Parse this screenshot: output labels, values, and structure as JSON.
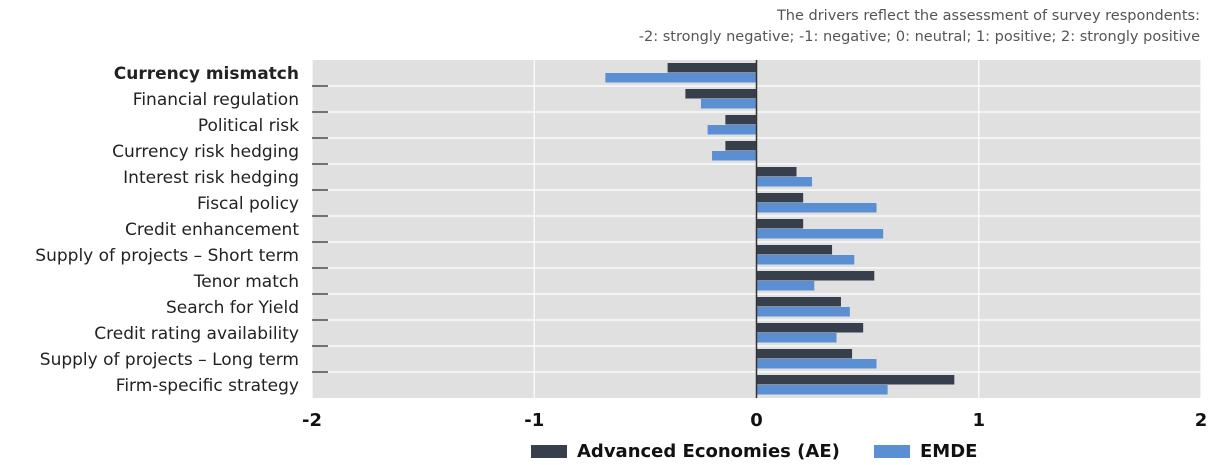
{
  "note": {
    "line1": "The drivers reflect the assessment of survey respondents:",
    "line2": "-2: strongly negative; -1: negative; 0: neutral; 1: positive; 2: strongly positive"
  },
  "colors": {
    "plot_background": "#e0e0e0",
    "gridline": "#ffffff",
    "zero_line": "#333333",
    "ae": "#363f4b",
    "emde": "#5b8fd3"
  },
  "chart_data": {
    "type": "bar",
    "orientation": "horizontal",
    "categories": [
      "Currency mismatch",
      "Financial regulation",
      "Political risk",
      "Currency risk hedging",
      "Interest risk hedging",
      "Fiscal policy",
      "Credit enhancement",
      "Supply of projects – Short term",
      "Tenor match",
      "Search for Yield",
      "Credit rating availability",
      "Supply of projects – Long term",
      "Firm-specific strategy"
    ],
    "highlighted_category": "Currency mismatch",
    "series": [
      {
        "name": "Advanced Economies (AE)",
        "values": [
          -0.4,
          -0.32,
          -0.14,
          -0.14,
          0.18,
          0.21,
          0.21,
          0.34,
          0.53,
          0.38,
          0.48,
          0.43,
          0.89
        ]
      },
      {
        "name": "EMDE",
        "values": [
          -0.68,
          -0.25,
          -0.22,
          -0.2,
          0.25,
          0.54,
          0.57,
          0.44,
          0.26,
          0.42,
          0.36,
          0.54,
          0.59
        ]
      }
    ],
    "xlim": [
      -2,
      2
    ],
    "xticks": [
      "-2",
      "-1",
      "0",
      "1",
      "2"
    ],
    "grid": true,
    "legend_position": "bottom-center"
  }
}
